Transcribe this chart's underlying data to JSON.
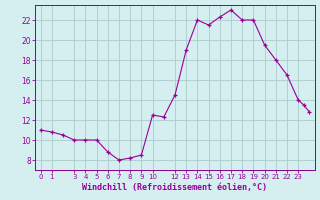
{
  "hours": [
    0,
    1,
    2,
    3,
    4,
    5,
    6,
    7,
    8,
    9,
    10,
    11,
    12,
    13,
    14,
    15,
    16,
    17,
    18,
    19,
    20,
    21,
    22,
    23,
    23.5,
    24.0
  ],
  "values": [
    11.0,
    10.8,
    10.5,
    10.0,
    10.0,
    10.0,
    8.8,
    8.0,
    8.2,
    8.5,
    12.5,
    12.3,
    14.5,
    19.0,
    22.0,
    21.5,
    22.3,
    23.0,
    22.0,
    22.0,
    19.5,
    18.0,
    16.5,
    14.0,
    13.5,
    12.8
  ],
  "line_color": "#990099",
  "marker_color": "#990099",
  "bg_color": "#d5eef0",
  "grid_color": "#aacccc",
  "axis_color": "#880088",
  "xlabel": "Windchill (Refroidissement éolien,°C)",
  "xlabel_color": "#990099",
  "tick_color": "#990099",
  "ylim": [
    7.0,
    23.5
  ],
  "yticks": [
    8,
    10,
    12,
    14,
    16,
    18,
    20,
    22
  ],
  "xticks": [
    0,
    1,
    3,
    4,
    5,
    6,
    7,
    8,
    9,
    10,
    12,
    13,
    14,
    15,
    16,
    17,
    18,
    19,
    20,
    21,
    22,
    23
  ],
  "xlim": [
    -0.5,
    24.5
  ],
  "figwidth": 3.2,
  "figheight": 2.0,
  "dpi": 100
}
